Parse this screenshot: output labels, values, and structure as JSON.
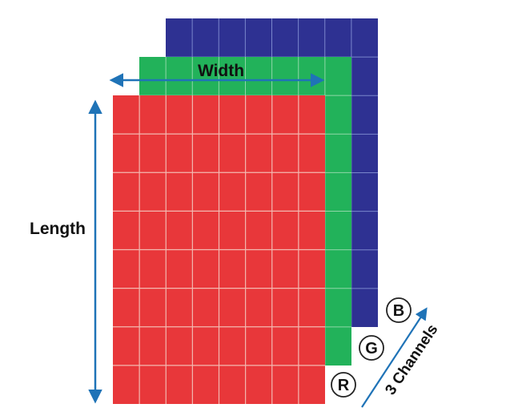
{
  "labels": {
    "width": "Width",
    "length": "Length",
    "channels": "3 Channels"
  },
  "channels": [
    {
      "id": "R",
      "name": "red",
      "color": "#e8373a"
    },
    {
      "id": "G",
      "name": "green",
      "color": "#22b25a"
    },
    {
      "id": "B",
      "name": "blue",
      "color": "#2e3192"
    }
  ],
  "grid": {
    "rows": 8,
    "cols": 8,
    "line_color": "#f3b8b0"
  },
  "arrow_color": "#1f73b7"
}
